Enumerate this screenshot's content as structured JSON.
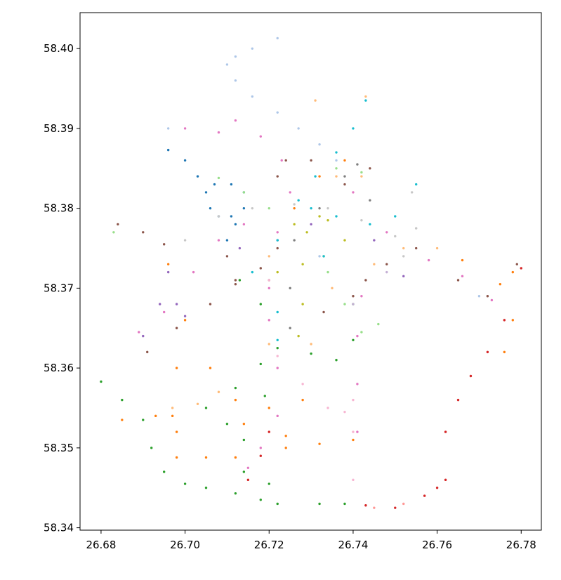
{
  "chart_data": {
    "type": "scatter",
    "xlim": [
      26.675,
      26.7848
    ],
    "ylim": [
      58.3397,
      58.4045
    ],
    "xticks": [
      {
        "value": 26.68,
        "label": "26.68"
      },
      {
        "value": 26.7,
        "label": "26.70"
      },
      {
        "value": 26.72,
        "label": "26.72"
      },
      {
        "value": 26.74,
        "label": "26.74"
      },
      {
        "value": 26.76,
        "label": "26.76"
      },
      {
        "value": 26.78,
        "label": "26.78"
      }
    ],
    "yticks": [
      {
        "value": 58.34,
        "label": "58.34"
      },
      {
        "value": 58.35,
        "label": "58.35"
      },
      {
        "value": 58.36,
        "label": "58.36"
      },
      {
        "value": 58.37,
        "label": "58.37"
      },
      {
        "value": 58.38,
        "label": "58.38"
      },
      {
        "value": 58.39,
        "label": "58.39"
      },
      {
        "value": 58.4,
        "label": "58.40"
      }
    ],
    "series": [
      {
        "color": "#1f77b4",
        "x": [
          26.696,
          26.7,
          26.703,
          26.705,
          26.706,
          26.708,
          26.711,
          26.714,
          26.712,
          26.71,
          26.707,
          26.711,
          26.714
        ],
        "y": [
          58.3873,
          58.386,
          58.384,
          58.382,
          58.38,
          58.379,
          58.379,
          58.38,
          58.378,
          58.376,
          58.383,
          58.383,
          58.382
        ]
      },
      {
        "color": "#aec7e8",
        "x": [
          26.722,
          26.716,
          26.712,
          26.71,
          26.712,
          26.716,
          26.722,
          26.727,
          26.732,
          26.736,
          26.696,
          26.732,
          26.77
        ],
        "y": [
          58.4013,
          58.4,
          58.399,
          58.398,
          58.396,
          58.394,
          58.392,
          58.39,
          58.388,
          58.386,
          58.39,
          58.374,
          58.369
        ]
      },
      {
        "color": "#ff7f0e",
        "x": [
          26.685,
          26.693,
          26.697,
          26.698,
          26.705,
          26.712,
          26.698,
          26.698,
          26.696,
          26.7,
          26.706,
          26.712,
          26.72,
          26.728,
          26.724,
          26.732,
          26.74,
          26.714,
          26.724,
          26.726,
          26.732,
          26.738,
          26.766,
          26.775,
          26.778,
          26.778,
          26.776
        ],
        "y": [
          58.3535,
          58.354,
          58.354,
          58.3488,
          58.3488,
          58.3488,
          58.352,
          58.36,
          58.373,
          58.366,
          58.36,
          58.356,
          58.355,
          58.356,
          58.35,
          58.3505,
          58.351,
          58.353,
          58.3515,
          58.38,
          58.384,
          58.386,
          58.3735,
          58.3705,
          58.372,
          58.366,
          58.362
        ]
      },
      {
        "color": "#ffbb78",
        "x": [
          26.697,
          26.703,
          26.708,
          26.72,
          26.73,
          26.735,
          26.742,
          26.736,
          26.752,
          26.76,
          26.745,
          26.72,
          26.731,
          26.743
        ],
        "y": [
          58.355,
          58.3555,
          58.357,
          58.363,
          58.363,
          58.37,
          58.384,
          58.384,
          58.375,
          58.375,
          58.373,
          58.374,
          58.3935,
          58.394
        ]
      },
      {
        "color": "#2ca02c",
        "x": [
          26.68,
          26.685,
          26.69,
          26.692,
          26.695,
          26.7,
          26.705,
          26.712,
          26.718,
          26.722,
          26.732,
          26.738,
          26.705,
          26.712,
          26.718,
          26.718,
          26.713,
          26.71,
          26.714,
          26.714,
          26.72,
          26.736,
          26.74,
          26.74,
          26.73,
          26.722,
          26.719
        ],
        "y": [
          58.3583,
          58.356,
          58.3535,
          58.35,
          58.347,
          58.3455,
          58.345,
          58.3443,
          58.3435,
          58.343,
          58.343,
          58.343,
          58.355,
          58.3575,
          58.3605,
          58.368,
          58.371,
          58.353,
          58.351,
          58.347,
          58.3455,
          58.361,
          58.3635,
          58.368,
          58.3618,
          58.3625,
          58.3565
        ]
      },
      {
        "color": "#98df8a",
        "x": [
          26.683,
          26.708,
          26.714,
          26.72,
          26.736,
          26.742,
          26.734,
          26.738,
          26.742,
          26.746
        ],
        "y": [
          58.377,
          58.3838,
          58.382,
          58.38,
          58.385,
          58.3845,
          58.372,
          58.368,
          58.3645,
          58.3655
        ]
      },
      {
        "color": "#d62728",
        "x": [
          26.78,
          26.776,
          26.772,
          26.768,
          26.765,
          26.762,
          26.762,
          26.76,
          26.757,
          26.75,
          26.743,
          26.715,
          26.718,
          26.72
        ],
        "y": [
          58.3725,
          58.366,
          58.362,
          58.359,
          58.356,
          58.352,
          58.346,
          58.345,
          58.344,
          58.3425,
          58.3428,
          58.346,
          58.349,
          58.352
        ]
      },
      {
        "color": "#ff9896",
        "x": [
          26.745,
          26.752
        ],
        "y": [
          58.3425,
          58.343
        ]
      },
      {
        "color": "#9467bd",
        "x": [
          26.69,
          26.694,
          26.696,
          26.698,
          26.7,
          26.713,
          26.722,
          26.73,
          26.745,
          26.752
        ],
        "y": [
          58.364,
          58.368,
          58.372,
          58.368,
          58.3665,
          58.375,
          58.376,
          58.378,
          58.376,
          58.3715
        ]
      },
      {
        "color": "#c5b0d5",
        "x": [
          26.74,
          26.748
        ],
        "y": [
          58.368,
          58.372
        ]
      },
      {
        "color": "#8c564b",
        "x": [
          26.684,
          26.69,
          26.695,
          26.691,
          26.698,
          26.706,
          26.712,
          26.718,
          26.722,
          26.71,
          26.712,
          26.72,
          26.722,
          26.724,
          26.73,
          26.738,
          26.744,
          26.733,
          26.74,
          26.743,
          26.748,
          26.755,
          26.765,
          26.772,
          26.779
        ],
        "y": [
          58.378,
          58.377,
          58.3755,
          58.362,
          58.365,
          58.368,
          58.371,
          58.3725,
          58.375,
          58.374,
          58.3705,
          58.371,
          58.384,
          58.386,
          58.386,
          58.383,
          58.385,
          58.367,
          58.369,
          58.371,
          58.373,
          58.375,
          58.371,
          58.369,
          58.373
        ]
      },
      {
        "color": "#e377c2",
        "x": [
          26.7,
          26.708,
          26.712,
          26.718,
          26.723,
          26.725,
          26.722,
          26.72,
          26.72,
          26.722,
          26.722,
          26.718,
          26.715,
          26.74,
          26.748,
          26.758,
          26.766,
          26.773,
          26.742,
          26.741,
          26.741,
          26.741,
          26.689,
          26.695,
          26.702,
          26.708,
          26.714
        ],
        "y": [
          58.39,
          58.3895,
          58.391,
          58.389,
          58.386,
          58.382,
          58.377,
          58.37,
          58.366,
          58.36,
          58.354,
          58.35,
          58.3475,
          58.382,
          58.377,
          58.3735,
          58.3715,
          58.3685,
          58.369,
          58.364,
          58.358,
          58.352,
          58.3645,
          58.367,
          58.372,
          58.376,
          58.378
        ]
      },
      {
        "color": "#f7b6d2",
        "x": [
          26.722,
          26.728,
          26.734,
          26.738,
          26.74,
          26.74,
          26.74,
          26.72
        ],
        "y": [
          58.3615,
          58.358,
          58.355,
          58.3545,
          58.352,
          58.346,
          58.356,
          58.371
        ]
      },
      {
        "color": "#7f7f7f",
        "x": [
          26.725,
          26.725,
          26.726,
          26.732,
          26.738,
          26.741,
          26.744
        ],
        "y": [
          58.365,
          58.37,
          58.376,
          58.38,
          58.384,
          58.3855,
          58.381
        ]
      },
      {
        "color": "#c7c7c7",
        "x": [
          26.7,
          26.708,
          26.716,
          26.726,
          26.734,
          26.742,
          26.75,
          26.755,
          26.754,
          26.752
        ],
        "y": [
          58.376,
          58.379,
          58.38,
          58.3805,
          58.38,
          58.3785,
          58.3765,
          58.3775,
          58.382,
          58.374
        ]
      },
      {
        "color": "#bcbd22",
        "x": [
          26.726,
          26.729,
          26.732,
          26.734,
          26.728,
          26.728,
          26.727,
          26.733,
          26.738,
          26.722
        ],
        "y": [
          58.378,
          58.377,
          58.379,
          58.3785,
          58.373,
          58.368,
          58.364,
          58.374,
          58.376,
          58.372
        ]
      },
      {
        "color": "#17becf",
        "x": [
          26.743,
          26.74,
          26.736,
          26.731,
          26.727,
          26.73,
          26.736,
          26.744,
          26.75,
          26.755,
          26.722,
          26.716,
          26.722,
          26.722,
          26.733
        ],
        "y": [
          58.3935,
          58.39,
          58.387,
          58.384,
          58.381,
          58.38,
          58.379,
          58.378,
          58.379,
          58.383,
          58.376,
          58.372,
          58.367,
          58.3635,
          58.374
        ]
      }
    ]
  }
}
